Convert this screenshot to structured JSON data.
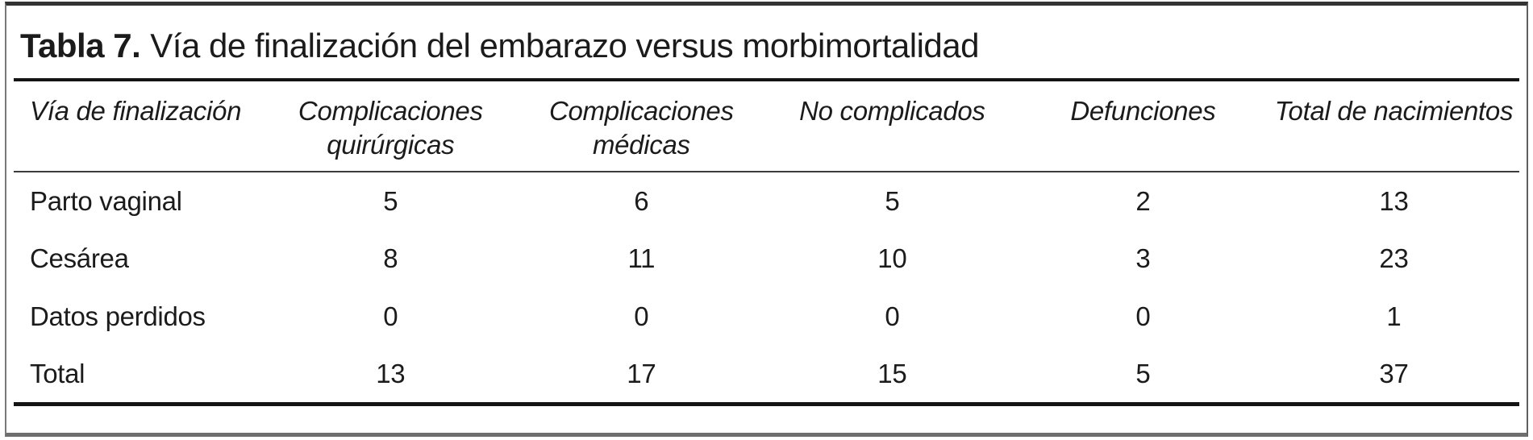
{
  "table": {
    "title_prefix": "Tabla 7.",
    "title": "Vía de finalización del embarazo versus morbimortalidad",
    "columns": [
      "Vía de finalización",
      "Complicaciones\nquirúrgicas",
      "Complicaciones\nmédicas",
      "No complicados",
      "Defunciones",
      "Total de nacimientos"
    ],
    "rows": [
      {
        "label": "Parto vaginal",
        "values": [
          5,
          6,
          5,
          2,
          13
        ]
      },
      {
        "label": "Cesárea",
        "values": [
          8,
          11,
          10,
          3,
          23
        ]
      },
      {
        "label": "Datos perdidos",
        "values": [
          0,
          0,
          0,
          0,
          1
        ]
      },
      {
        "label": "Total",
        "values": [
          13,
          17,
          15,
          5,
          37
        ]
      }
    ]
  },
  "chart_data": {
    "type": "table",
    "title": "Tabla 7. Vía de finalización del embarazo versus morbimortalidad",
    "columns": [
      "Vía de finalización",
      "Complicaciones quirúrgicas",
      "Complicaciones médicas",
      "No complicados",
      "Defunciones",
      "Total de nacimientos"
    ],
    "rows": [
      [
        "Parto vaginal",
        5,
        6,
        5,
        2,
        13
      ],
      [
        "Cesárea",
        8,
        11,
        10,
        3,
        23
      ],
      [
        "Datos perdidos",
        0,
        0,
        0,
        0,
        1
      ],
      [
        "Total",
        13,
        17,
        15,
        5,
        37
      ]
    ]
  }
}
